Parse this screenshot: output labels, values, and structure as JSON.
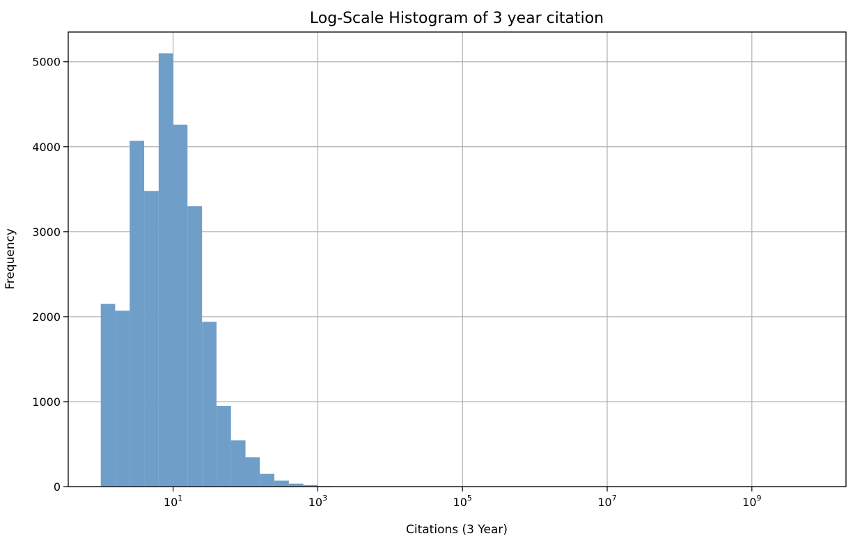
{
  "chart_data": {
    "type": "bar",
    "title": "Log-Scale Histogram of 3 year citation",
    "xlabel": "Citations (3 Year)",
    "ylabel": "Frequency",
    "xscale": "log",
    "xlim": [
      0.355,
      20000000000.0
    ],
    "ylim": [
      0,
      5350
    ],
    "grid": true,
    "bar_color": "#6f9ec8",
    "x_ticks": [
      {
        "value": 10,
        "base": "10",
        "exp": "1"
      },
      {
        "value": 1000,
        "base": "10",
        "exp": "3"
      },
      {
        "value": 100000,
        "base": "10",
        "exp": "5"
      },
      {
        "value": 10000000,
        "base": "10",
        "exp": "7"
      },
      {
        "value": 1000000000,
        "base": "10",
        "exp": "9"
      }
    ],
    "y_ticks": [
      {
        "value": 0,
        "label": "0"
      },
      {
        "value": 1000,
        "label": "1000"
      },
      {
        "value": 2000,
        "label": "2000"
      },
      {
        "value": 3000,
        "label": "3000"
      },
      {
        "value": 4000,
        "label": "4000"
      },
      {
        "value": 5000,
        "label": "5000"
      }
    ],
    "bins": [
      {
        "x0": 1.0,
        "x1": 1.58,
        "count": 2150
      },
      {
        "x0": 1.58,
        "x1": 2.51,
        "count": 2070
      },
      {
        "x0": 2.51,
        "x1": 3.98,
        "count": 4070
      },
      {
        "x0": 3.98,
        "x1": 6.31,
        "count": 3480
      },
      {
        "x0": 6.31,
        "x1": 10.0,
        "count": 5100
      },
      {
        "x0": 10.0,
        "x1": 15.8,
        "count": 4260
      },
      {
        "x0": 15.8,
        "x1": 25.1,
        "count": 3300
      },
      {
        "x0": 25.1,
        "x1": 39.8,
        "count": 1940
      },
      {
        "x0": 39.8,
        "x1": 63.1,
        "count": 950
      },
      {
        "x0": 63.1,
        "x1": 100.0,
        "count": 545
      },
      {
        "x0": 100.0,
        "x1": 158.0,
        "count": 345
      },
      {
        "x0": 158.0,
        "x1": 251.0,
        "count": 150
      },
      {
        "x0": 251.0,
        "x1": 398.0,
        "count": 70
      },
      {
        "x0": 398.0,
        "x1": 631.0,
        "count": 35
      },
      {
        "x0": 631.0,
        "x1": 1000.0,
        "count": 18
      },
      {
        "x0": 1000.0,
        "x1": 1580.0,
        "count": 6
      },
      {
        "x0": 1580.0,
        "x1": 2510.0,
        "count": 3
      },
      {
        "x0": 2510.0,
        "x1": 3980.0,
        "count": 2
      },
      {
        "x0": 3980.0,
        "x1": 6310.0,
        "count": 1
      },
      {
        "x0": 6310.0,
        "x1": 10000.0,
        "count": 1
      }
    ]
  }
}
